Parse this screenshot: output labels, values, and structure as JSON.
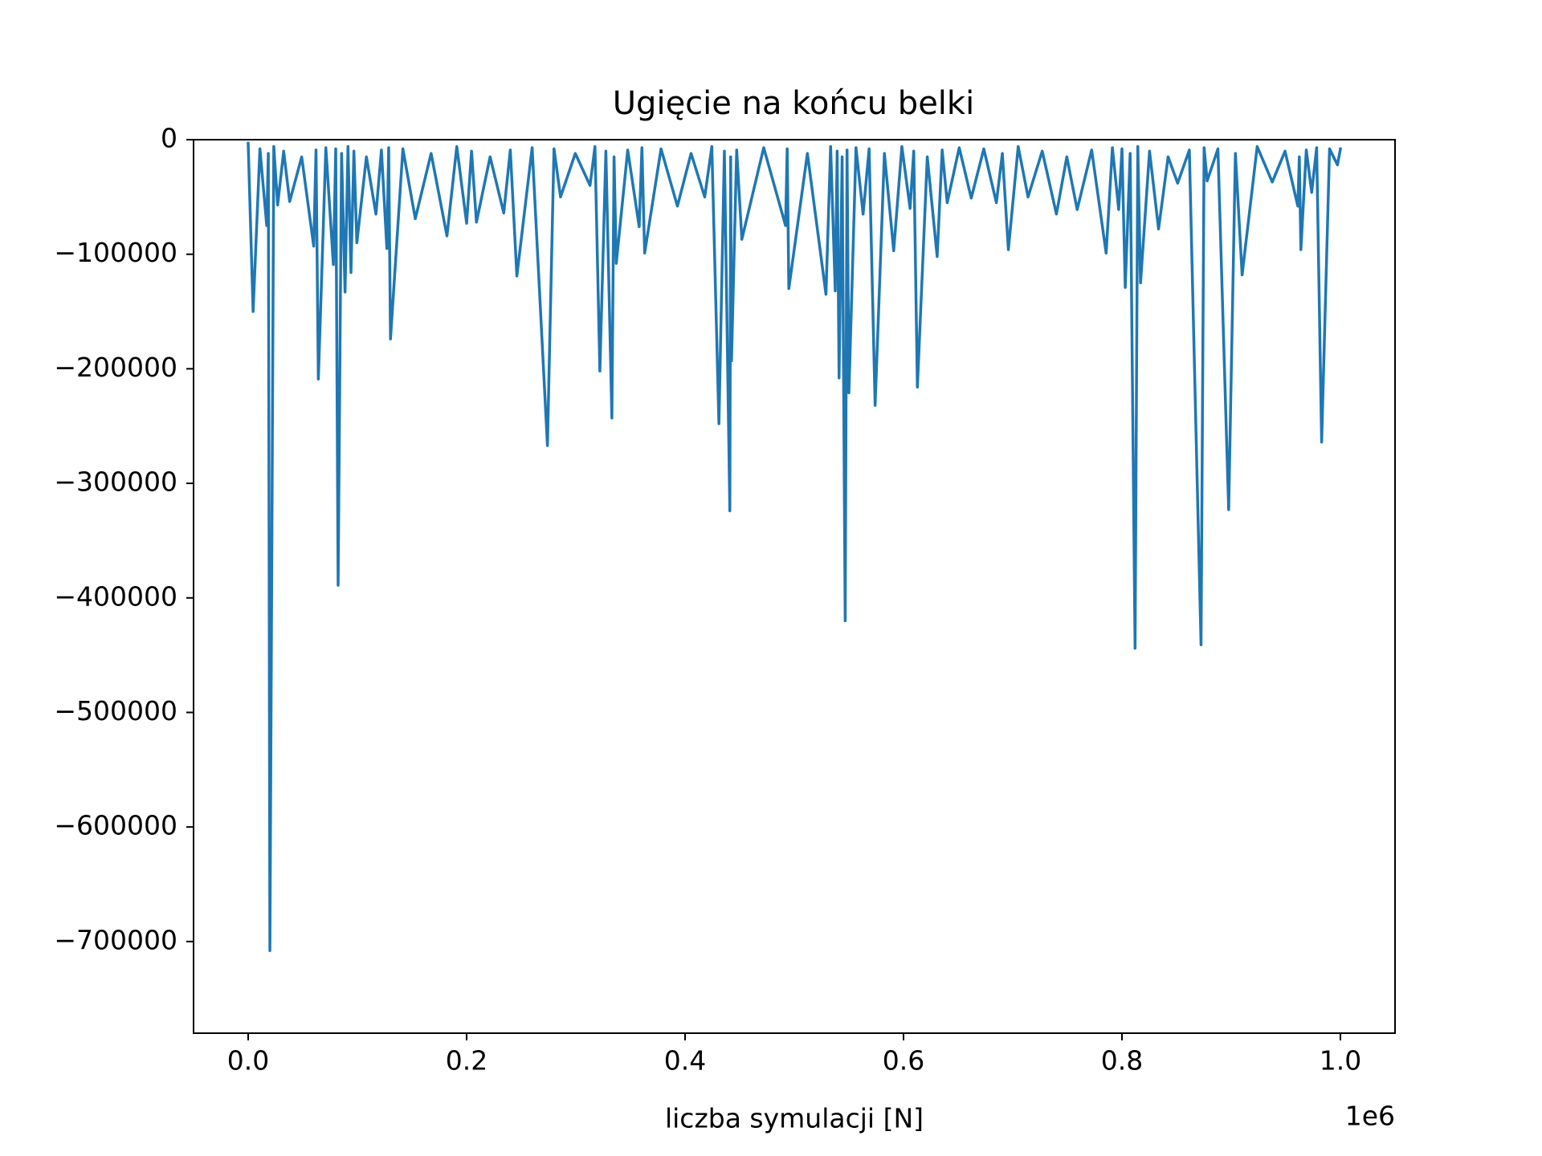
{
  "chart_data": {
    "type": "line",
    "title": "Ugięcie na końcu belki",
    "xlabel": "liczba symulacji [N]",
    "x_offset_label": "1e6",
    "x": [
      0,
      4525,
      10760,
      17000,
      18450,
      19900,
      23450,
      27000,
      32500,
      38000,
      49000,
      60000,
      62125,
      64250,
      71125,
      78000,
      80175,
      82350,
      85525,
      88700,
      91400,
      94100,
      96800,
      99500,
      108250,
      117000,
      122000,
      127000,
      128650,
      130300,
      141650,
      153000,
      167500,
      182000,
      191000,
      200000,
      204500,
      209000,
      221500,
      234000,
      240000,
      246000,
      260000,
      274000,
      280000,
      286000,
      299500,
      313000,
      317500,
      322000,
      327500,
      333000,
      335000,
      337000,
      347500,
      358000,
      360500,
      363000,
      378000,
      393000,
      405500,
      418000,
      424500,
      431000,
      436000,
      441000,
      441750,
      442500,
      447250,
      452000,
      472000,
      492000,
      493500,
      495000,
      512000,
      529000,
      533250,
      537500,
      539250,
      541000,
      543800,
      546600,
      548300,
      550000,
      556500,
      563000,
      568500,
      574000,
      582500,
      591000,
      598500,
      606000,
      609350,
      612700,
      621750,
      630800,
      635400,
      640000,
      651000,
      662000,
      673500,
      685000,
      690500,
      696000,
      705000,
      714000,
      727000,
      740000,
      749500,
      759000,
      772250,
      785500,
      791250,
      797000,
      800000,
      803000,
      807500,
      812000,
      814500,
      817000,
      825250,
      833500,
      842250,
      851000,
      861700,
      872400,
      875200,
      878000,
      887850,
      897700,
      903850,
      910000,
      923800,
      937600,
      949300,
      961000,
      962400,
      963800,
      968750,
      973700,
      978250,
      982800,
      990050,
      997300,
      1000000
    ],
    "series": [
      {
        "color": "#1f77b4",
        "values": [
          -3000,
          -150000,
          -8000,
          -75000,
          -12000,
          -708000,
          -6000,
          -57000,
          -10000,
          -54000,
          -15000,
          -93000,
          -9000,
          -209000,
          -7000,
          -109000,
          -8000,
          -389000,
          -12000,
          -133000,
          -6000,
          -116000,
          -10000,
          -90000,
          -15000,
          -65000,
          -9000,
          -95000,
          -7000,
          -174000,
          -8000,
          -69000,
          -12000,
          -84000,
          -6000,
          -73000,
          -10000,
          -72000,
          -15000,
          -64000,
          -9000,
          -119000,
          -7000,
          -267000,
          -8000,
          -50000,
          -12000,
          -40000,
          -6000,
          -202000,
          -10000,
          -243000,
          -15000,
          -108000,
          -9000,
          -76000,
          -7000,
          -99000,
          -8000,
          -58000,
          -12000,
          -50000,
          -6000,
          -248000,
          -10000,
          -324000,
          -15000,
          -193000,
          -9000,
          -87000,
          -7000,
          -75000,
          -8000,
          -130000,
          -12000,
          -135000,
          -6000,
          -132000,
          -10000,
          -208000,
          -15000,
          -420000,
          -9000,
          -221000,
          -7000,
          -65000,
          -8000,
          -232000,
          -12000,
          -97000,
          -6000,
          -60000,
          -10000,
          -216000,
          -15000,
          -102000,
          -9000,
          -55000,
          -7000,
          -51000,
          -8000,
          -55000,
          -12000,
          -96000,
          -6000,
          -50000,
          -10000,
          -65000,
          -15000,
          -61000,
          -9000,
          -99000,
          -7000,
          -61000,
          -8000,
          -129000,
          -12000,
          -444000,
          -6000,
          -125000,
          -10000,
          -78000,
          -15000,
          -38000,
          -9000,
          -441000,
          -7000,
          -36000,
          -8000,
          -323000,
          -12000,
          -118000,
          -6000,
          -37000,
          -10000,
          -58000,
          -15000,
          -96000,
          -9000,
          -46000,
          -7000,
          -264000,
          -8000,
          -22000,
          -8000
        ]
      }
    ],
    "xlim": [
      -50000,
      1050000
    ],
    "ylim": [
      -780000,
      0
    ],
    "xticks": [
      {
        "value": 0,
        "label": "0.0"
      },
      {
        "value": 200000,
        "label": "0.2"
      },
      {
        "value": 400000,
        "label": "0.4"
      },
      {
        "value": 600000,
        "label": "0.6"
      },
      {
        "value": 800000,
        "label": "0.8"
      },
      {
        "value": 1000000,
        "label": "1.0"
      }
    ],
    "yticks": [
      0,
      {
        "value": -100000,
        "label": "−100000"
      },
      {
        "value": -200000,
        "label": "−200000"
      },
      {
        "value": -300000,
        "label": "−300000"
      },
      {
        "value": -400000,
        "label": "−400000"
      },
      {
        "value": -500000,
        "label": "−500000"
      },
      {
        "value": -600000,
        "label": "−600000"
      },
      {
        "value": -700000,
        "label": "−700000"
      }
    ],
    "grid": false
  }
}
